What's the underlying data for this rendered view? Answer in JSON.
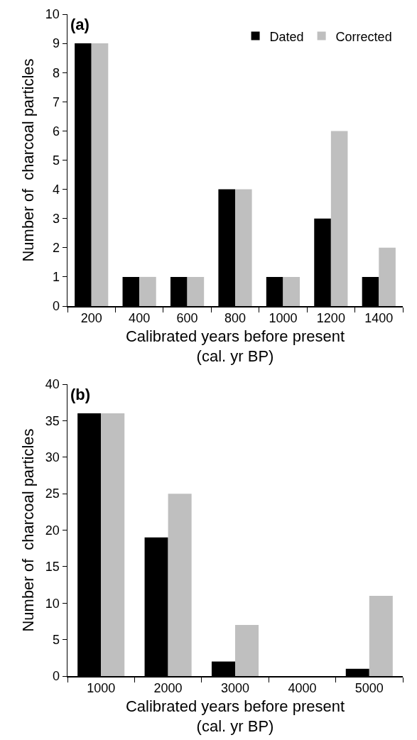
{
  "chart_data": [
    {
      "type": "bar",
      "annotations": [
        "(a)"
      ],
      "xlabel": "Calibrated years before present\n(cal. yr BP)",
      "ylabel": "Number of  charcoal particles",
      "categories": [
        "200",
        "400",
        "600",
        "800",
        "1000",
        "1200",
        "1400"
      ],
      "series": [
        {
          "name": "Dated",
          "color": "#000000",
          "values": [
            9,
            1,
            1,
            4,
            1,
            3,
            1
          ]
        },
        {
          "name": "Corrected",
          "color": "#bfbfbf",
          "values": [
            9,
            1,
            1,
            4,
            1,
            6,
            2
          ]
        }
      ],
      "ylim": [
        0,
        10
      ],
      "yticks": [
        0,
        1,
        2,
        3,
        4,
        5,
        6,
        7,
        8,
        9,
        10
      ],
      "grid": false,
      "legend": "top right"
    },
    {
      "type": "bar",
      "annotations": [
        "(b)"
      ],
      "xlabel": "Calibrated years before present\n(cal. yr BP)",
      "ylabel": "Number of  charcoal particles",
      "categories": [
        "1000",
        "2000",
        "3000",
        "4000",
        "5000"
      ],
      "series": [
        {
          "color": "#000000",
          "values": [
            36,
            19,
            2,
            0,
            1
          ]
        },
        {
          "color": "#bfbfbf",
          "values": [
            36,
            25,
            7,
            0,
            11
          ]
        }
      ],
      "ylim": [
        0,
        40
      ],
      "yticks": [
        0,
        5,
        10,
        15,
        20,
        25,
        30,
        35,
        40
      ],
      "grid": false,
      "legend": false
    }
  ]
}
